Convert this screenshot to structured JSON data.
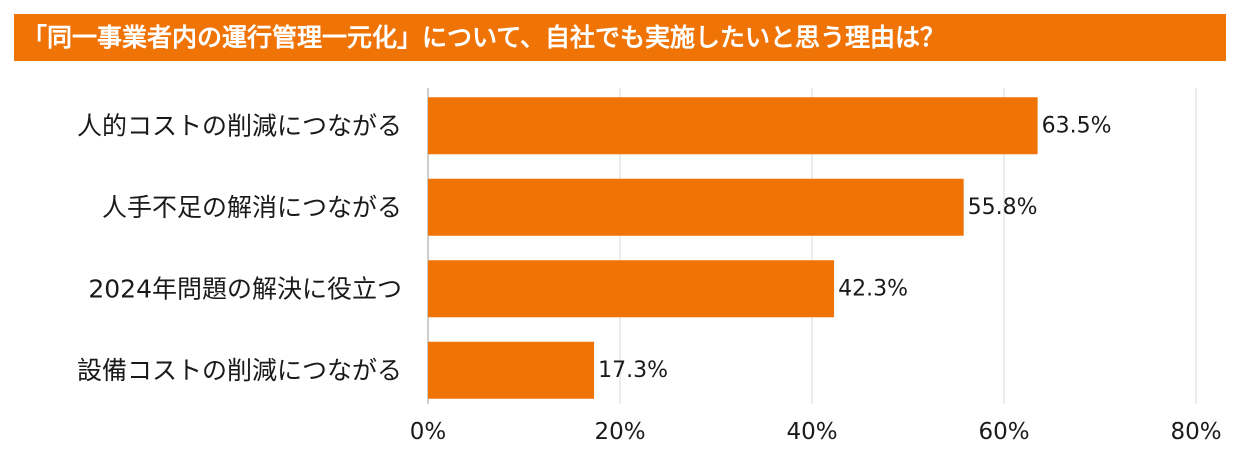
{
  "chart_data": {
    "type": "bar",
    "orientation": "horizontal",
    "title": "「同一事業者内の運行管理一元化」について、自社でも実施したいと思う理由は？",
    "categories": [
      "人的コストの削減につながる",
      "人手不足の解消につながる",
      "2024年問題の解決に役立つ",
      "設備コストの削減につながる"
    ],
    "values": [
      63.5,
      55.8,
      42.3,
      17.3
    ],
    "value_labels": [
      "63.5%",
      "55.8%",
      "42.3%",
      "17.3%"
    ],
    "xlim": [
      0,
      80
    ],
    "x_ticks": [
      0,
      20,
      40,
      60,
      80
    ],
    "x_tick_labels": [
      "0%",
      "20%",
      "40%",
      "60%",
      "80%"
    ],
    "grid": true,
    "bar_color": "#f07306",
    "title_bg_color": "#f07306",
    "title_text_color": "#ffffff"
  }
}
